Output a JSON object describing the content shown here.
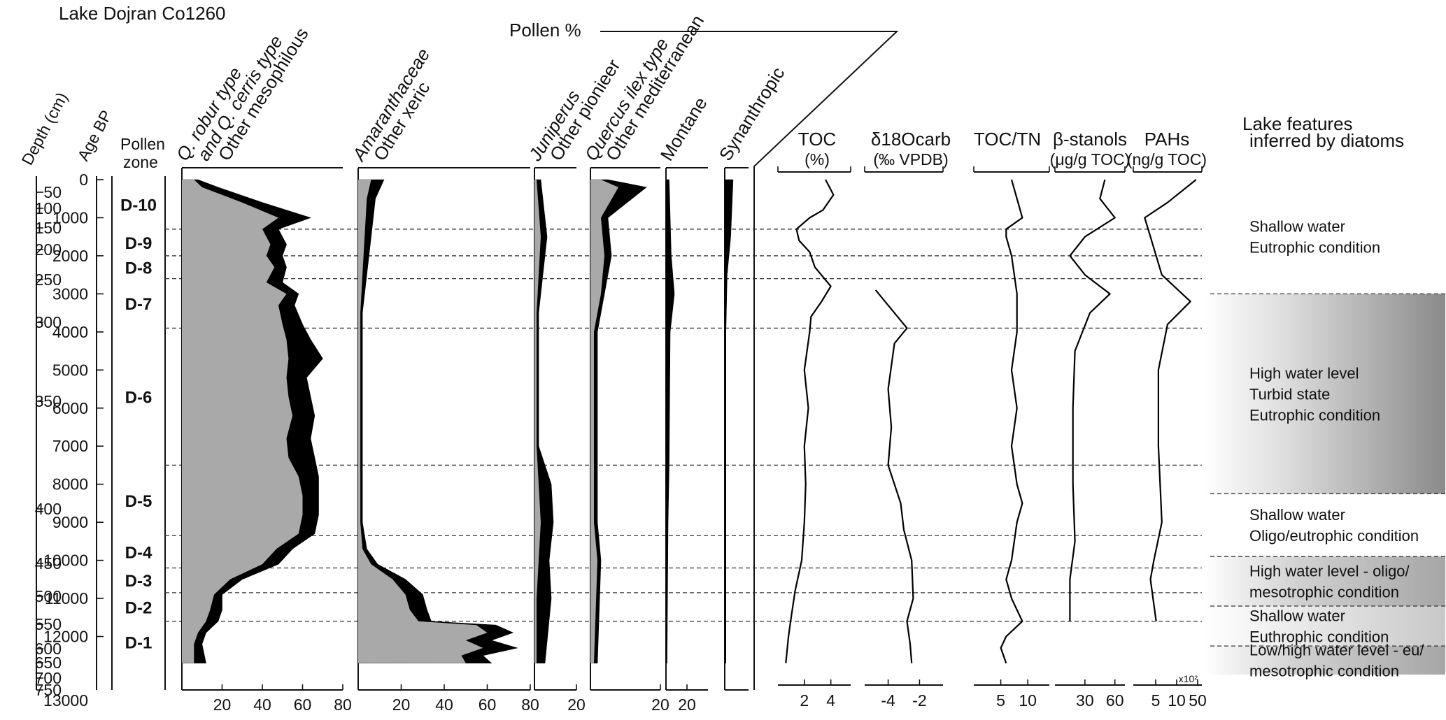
{
  "chart_data": {
    "type": "area",
    "title": "Lake Dojran Co1260",
    "pollen_header": "Pollen %",
    "depth_axis": {
      "label": "Depth (cm)",
      "ticks": [
        "50",
        "100",
        "150",
        "200",
        "250",
        "300",
        "350",
        "400",
        "450",
        "500",
        "550",
        "600",
        "650",
        "700",
        "750"
      ]
    },
    "age_axis": {
      "label": "Age BP",
      "ticks": [
        "0",
        "1000",
        "2000",
        "3000",
        "4000",
        "5000",
        "6000",
        "7000",
        "8000",
        "9000",
        "10000",
        "11000",
        "12000",
        "13000"
      ],
      "ylim": [
        0,
        13000
      ]
    },
    "pollen_zone_header": [
      "Pollen",
      "zone"
    ],
    "pollen_zones": [
      {
        "label": "D-10",
        "top": 0,
        "bottom": 1300
      },
      {
        "label": "D-9",
        "top": 1300,
        "bottom": 2000
      },
      {
        "label": "D-8",
        "top": 2000,
        "bottom": 2600
      },
      {
        "label": "D-7",
        "top": 2600,
        "bottom": 3900
      },
      {
        "label": "D-6",
        "top": 3900,
        "bottom": 7500
      },
      {
        "label": "D-5",
        "top": 7500,
        "bottom": 9350
      },
      {
        "label": "D-4",
        "top": 9350,
        "bottom": 10200
      },
      {
        "label": "D-3",
        "top": 10200,
        "bottom": 10850
      },
      {
        "label": "D-2",
        "top": 10850,
        "bottom": 11600
      },
      {
        "label": "D-1",
        "top": 11600,
        "bottom": 12700
      }
    ],
    "pollen_panels": [
      {
        "title_gray": [
          "Q. robur type",
          "and Q. cerris type"
        ],
        "title_black": "Other mesophilous",
        "xlim": [
          0,
          80
        ],
        "ticks": [
          "20",
          "40",
          "60",
          "80"
        ],
        "gray": [
          [
            0,
            6
          ],
          [
            200,
            10
          ],
          [
            600,
            30
          ],
          [
            1000,
            48
          ],
          [
            1300,
            40
          ],
          [
            1700,
            44
          ],
          [
            2000,
            42
          ],
          [
            2300,
            46
          ],
          [
            2700,
            42
          ],
          [
            3000,
            52
          ],
          [
            3300,
            48
          ],
          [
            3800,
            50
          ],
          [
            4200,
            52
          ],
          [
            4700,
            53
          ],
          [
            5200,
            52
          ],
          [
            5700,
            53
          ],
          [
            6200,
            55
          ],
          [
            6800,
            52
          ],
          [
            7300,
            53
          ],
          [
            7800,
            58
          ],
          [
            8300,
            60
          ],
          [
            8800,
            60
          ],
          [
            9300,
            58
          ],
          [
            9700,
            47
          ],
          [
            10100,
            40
          ],
          [
            10500,
            24
          ],
          [
            10900,
            16
          ],
          [
            11300,
            14
          ],
          [
            11600,
            12
          ],
          [
            11900,
            8
          ],
          [
            12200,
            6
          ],
          [
            12700,
            6
          ]
        ],
        "total": [
          [
            0,
            8
          ],
          [
            200,
            18
          ],
          [
            600,
            40
          ],
          [
            1000,
            64
          ],
          [
            1300,
            48
          ],
          [
            1700,
            52
          ],
          [
            2000,
            50
          ],
          [
            2300,
            52
          ],
          [
            2700,
            50
          ],
          [
            3000,
            58
          ],
          [
            3300,
            56
          ],
          [
            3800,
            60
          ],
          [
            4200,
            64
          ],
          [
            4700,
            70
          ],
          [
            5200,
            62
          ],
          [
            5700,
            64
          ],
          [
            6200,
            66
          ],
          [
            6800,
            64
          ],
          [
            7300,
            66
          ],
          [
            7800,
            68
          ],
          [
            8300,
            68
          ],
          [
            8800,
            68
          ],
          [
            9300,
            66
          ],
          [
            9700,
            55
          ],
          [
            10100,
            48
          ],
          [
            10500,
            30
          ],
          [
            10900,
            20
          ],
          [
            11300,
            20
          ],
          [
            11600,
            18
          ],
          [
            11900,
            12
          ],
          [
            12200,
            10
          ],
          [
            12700,
            12
          ]
        ]
      },
      {
        "title_gray": [
          "Amaranthaceae"
        ],
        "title_black": "Other xeric",
        "xlim": [
          0,
          80
        ],
        "ticks": [
          "20",
          "40",
          "60",
          "80"
        ],
        "gray": [
          [
            0,
            6
          ],
          [
            500,
            4
          ],
          [
            1500,
            3
          ],
          [
            2500,
            2
          ],
          [
            3500,
            1
          ],
          [
            6000,
            1
          ],
          [
            9000,
            1
          ],
          [
            9700,
            2
          ],
          [
            10100,
            6
          ],
          [
            10500,
            16
          ],
          [
            10900,
            22
          ],
          [
            11300,
            24
          ],
          [
            11600,
            28
          ],
          [
            11700,
            55
          ],
          [
            11900,
            60
          ],
          [
            12100,
            50
          ],
          [
            12300,
            58
          ],
          [
            12500,
            48
          ],
          [
            12700,
            50
          ]
        ],
        "total": [
          [
            0,
            12
          ],
          [
            500,
            8
          ],
          [
            1500,
            6
          ],
          [
            2500,
            4
          ],
          [
            3500,
            2
          ],
          [
            6000,
            2
          ],
          [
            9000,
            2
          ],
          [
            9700,
            4
          ],
          [
            10100,
            9
          ],
          [
            10500,
            22
          ],
          [
            10900,
            30
          ],
          [
            11300,
            32
          ],
          [
            11600,
            34
          ],
          [
            11700,
            64
          ],
          [
            11900,
            72
          ],
          [
            12100,
            62
          ],
          [
            12300,
            74
          ],
          [
            12500,
            58
          ],
          [
            12700,
            62
          ]
        ]
      },
      {
        "title_gray": [
          "Juniperus"
        ],
        "title_black": "Other pionieer",
        "xlim": [
          0,
          20
        ],
        "ticks": [
          "20"
        ],
        "gray": [
          [
            0,
            1
          ],
          [
            1500,
            3
          ],
          [
            2500,
            2
          ],
          [
            3500,
            1
          ],
          [
            7000,
            1
          ],
          [
            8000,
            2
          ],
          [
            9000,
            3
          ],
          [
            10000,
            2
          ],
          [
            11000,
            1
          ],
          [
            12700,
            1
          ]
        ],
        "total": [
          [
            0,
            3
          ],
          [
            1500,
            6
          ],
          [
            2500,
            4
          ],
          [
            3500,
            2
          ],
          [
            7000,
            2
          ],
          [
            8000,
            8
          ],
          [
            9000,
            9
          ],
          [
            10000,
            7
          ],
          [
            11000,
            8
          ],
          [
            12700,
            5
          ]
        ]
      },
      {
        "title_gray": [
          "Quercus ilex type"
        ],
        "title_black": "Other mediterranean",
        "xlim": [
          0,
          20
        ],
        "ticks": [
          "20"
        ],
        "gray": [
          [
            0,
            3
          ],
          [
            200,
            8
          ],
          [
            1000,
            3
          ],
          [
            2000,
            4
          ],
          [
            3000,
            3
          ],
          [
            4000,
            1
          ],
          [
            9000,
            1
          ],
          [
            10000,
            2
          ],
          [
            12700,
            1
          ]
        ],
        "total": [
          [
            0,
            5
          ],
          [
            200,
            16
          ],
          [
            1000,
            5
          ],
          [
            2000,
            6
          ],
          [
            3000,
            4
          ],
          [
            4000,
            2
          ],
          [
            9000,
            2
          ],
          [
            10000,
            3
          ],
          [
            12700,
            2
          ]
        ]
      },
      {
        "title_gray": [],
        "title_black": "Montane",
        "xlim": [
          0,
          40
        ],
        "ticks": [
          "20"
        ],
        "gray": [],
        "total": [
          [
            0,
            3
          ],
          [
            2000,
            5
          ],
          [
            3000,
            8
          ],
          [
            4000,
            4
          ],
          [
            7500,
            3
          ],
          [
            9000,
            2
          ],
          [
            12700,
            1
          ]
        ]
      },
      {
        "title_gray": [],
        "title_black": "Synanthropic",
        "xlim": [
          0,
          20
        ],
        "ticks": [],
        "gray": [],
        "total": [
          [
            0,
            7
          ],
          [
            1500,
            5
          ],
          [
            2500,
            2
          ],
          [
            4000,
            1
          ],
          [
            12700,
            1
          ]
        ]
      }
    ],
    "geochem_panels": [
      {
        "label": "TOC",
        "unit": "(%)",
        "ticks": [
          "2",
          "4"
        ],
        "xlim": [
          0,
          5.5
        ],
        "values": [
          [
            0,
            3.6
          ],
          [
            400,
            4.2
          ],
          [
            800,
            3.4
          ],
          [
            1000,
            2.4
          ],
          [
            1300,
            1.4
          ],
          [
            1600,
            1.6
          ],
          [
            1900,
            2.4
          ],
          [
            2300,
            2.8
          ],
          [
            2800,
            4.0
          ],
          [
            3200,
            3.3
          ],
          [
            3600,
            2.5
          ],
          [
            4000,
            2.4
          ],
          [
            5000,
            2.0
          ],
          [
            6000,
            2.3
          ],
          [
            7000,
            2.0
          ],
          [
            8000,
            2.1
          ],
          [
            9000,
            2.0
          ],
          [
            10000,
            1.8
          ],
          [
            10800,
            1.3
          ],
          [
            11500,
            1.0
          ],
          [
            12000,
            0.8
          ],
          [
            12700,
            0.6
          ]
        ]
      },
      {
        "label": "δ18Ocarb",
        "unit": "(‰ VPDB)",
        "ticks": [
          "-4",
          "-2"
        ],
        "xlim": [
          -5.5,
          -0.5
        ],
        "values": [
          [
            2900,
            -4.8
          ],
          [
            3400,
            -3.8
          ],
          [
            3900,
            -2.8
          ],
          [
            4300,
            -3.6
          ],
          [
            5500,
            -4.0
          ],
          [
            6500,
            -3.8
          ],
          [
            7500,
            -4.0
          ],
          [
            8500,
            -3.2
          ],
          [
            9200,
            -3.0
          ],
          [
            10000,
            -2.5
          ],
          [
            11000,
            -2.4
          ],
          [
            11600,
            -2.8
          ],
          [
            12200,
            -2.6
          ],
          [
            12700,
            -2.5
          ]
        ]
      },
      {
        "label": "TOC/TN",
        "unit": "",
        "ticks": [
          "5",
          "10"
        ],
        "xlim": [
          0,
          14
        ],
        "values": [
          [
            0,
            7
          ],
          [
            500,
            8
          ],
          [
            1000,
            9
          ],
          [
            1300,
            6
          ],
          [
            1500,
            6
          ],
          [
            2000,
            7
          ],
          [
            3000,
            8
          ],
          [
            4000,
            8
          ],
          [
            5000,
            7
          ],
          [
            6000,
            8
          ],
          [
            7000,
            7
          ],
          [
            8000,
            8
          ],
          [
            8500,
            9
          ],
          [
            9000,
            8
          ],
          [
            10000,
            7
          ],
          [
            10500,
            6
          ],
          [
            11000,
            7
          ],
          [
            11600,
            9
          ],
          [
            12000,
            6
          ],
          [
            12300,
            5
          ],
          [
            12700,
            6
          ]
        ]
      },
      {
        "label": "β-stanols",
        "unit": "(μg/g TOC)",
        "ticks": [
          "30",
          "60"
        ],
        "xlim": [
          0,
          70
        ],
        "values": [
          [
            0,
            50
          ],
          [
            500,
            45
          ],
          [
            1000,
            60
          ],
          [
            1500,
            30
          ],
          [
            2000,
            15
          ],
          [
            2500,
            30
          ],
          [
            3000,
            55
          ],
          [
            3500,
            35
          ],
          [
            4500,
            20
          ],
          [
            6000,
            18
          ],
          [
            8000,
            18
          ],
          [
            9500,
            20
          ],
          [
            10500,
            15
          ],
          [
            11600,
            15
          ]
        ]
      },
      {
        "label": "PAHs",
        "unit": "(ng/g TOC)",
        "ticks": [
          "5",
          "10",
          "50"
        ],
        "multiplier": "x10²",
        "xlim": [
          0,
          60
        ],
        "values": [
          [
            0,
            55
          ],
          [
            600,
            30
          ],
          [
            1000,
            10
          ],
          [
            1500,
            15
          ],
          [
            2500,
            25
          ],
          [
            3200,
            50
          ],
          [
            3800,
            30
          ],
          [
            5000,
            22
          ],
          [
            7000,
            22
          ],
          [
            9000,
            25
          ],
          [
            10000,
            18
          ],
          [
            10500,
            15
          ],
          [
            11600,
            20
          ]
        ]
      }
    ],
    "lake_features": {
      "header": [
        "Lake features",
        "inferred by diatoms"
      ],
      "segments": [
        {
          "lines": [
            "Shallow water",
            "Eutrophic condition"
          ],
          "top": 0,
          "bottom": 3000,
          "shade": "none"
        },
        {
          "lines": [
            "High water level",
            "Turbid state",
            "Eutrophic condition"
          ],
          "top": 3000,
          "bottom": 8250,
          "shade": "dark"
        },
        {
          "lines": [
            "Shallow water",
            "Oligo/eutrophic condition"
          ],
          "top": 8250,
          "bottom": 9900,
          "shade": "none"
        },
        {
          "lines": [
            "High water level - oligo/",
            "mesotrophic condition"
          ],
          "top": 9900,
          "bottom": 11200,
          "shade": "medium"
        },
        {
          "lines": [
            "Shallow water",
            "Euthrophic condition"
          ],
          "top": 11200,
          "bottom": 12250,
          "shade": "light"
        },
        {
          "lines": [
            "Low/high water level - eu/",
            "mesotrophic condition"
          ],
          "top": 12250,
          "bottom": 13000,
          "shade": "medium"
        }
      ]
    },
    "colors": {
      "gray_fill": "#a9a9a9",
      "black_fill": "#000000",
      "gray_text": "#a0a0a0",
      "dash": "#333333"
    }
  }
}
